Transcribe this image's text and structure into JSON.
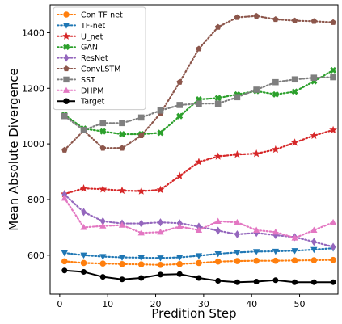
{
  "chart_data": {
    "type": "line",
    "xlabel": "Predition Step",
    "ylabel": "Mean Absolute Divergence",
    "xlim": [
      -2,
      58
    ],
    "ylim": [
      460,
      1500
    ],
    "xticks": [
      0,
      10,
      20,
      30,
      40,
      50
    ],
    "yticks": [
      600,
      800,
      1000,
      1200,
      1400
    ],
    "grid": false,
    "legend_position": "top-left",
    "x": [
      1,
      5,
      9,
      13,
      17,
      21,
      25,
      29,
      33,
      37,
      41,
      45,
      49,
      53,
      57
    ],
    "series": [
      {
        "name": "Con TF-net",
        "color": "#ff7f0e",
        "marker": "circle",
        "style": "dotted",
        "values": [
          578,
          572,
          570,
          568,
          567,
          565,
          568,
          572,
          577,
          579,
          580,
          580,
          581,
          582,
          583
        ]
      },
      {
        "name": "TF-net",
        "color": "#1f77b4",
        "marker": "triangle-down",
        "style": "dotted",
        "values": [
          608,
          600,
          595,
          592,
          591,
          590,
          592,
          598,
          605,
          610,
          613,
          614,
          616,
          620,
          625
        ]
      },
      {
        "name": "U_net",
        "color": "#d62728",
        "marker": "star",
        "style": "dotted",
        "values": [
          820,
          840,
          837,
          832,
          830,
          835,
          885,
          935,
          955,
          962,
          965,
          980,
          1005,
          1030,
          1050
        ]
      },
      {
        "name": "GAN",
        "color": "#2ca02c",
        "marker": "x",
        "style": "dotted",
        "values": [
          1105,
          1055,
          1045,
          1035,
          1035,
          1040,
          1100,
          1160,
          1165,
          1178,
          1190,
          1178,
          1188,
          1225,
          1265
        ]
      },
      {
        "name": "ResNet",
        "color": "#9467bd",
        "marker": "diamond",
        "style": "dotted",
        "values": [
          818,
          755,
          722,
          714,
          714,
          718,
          715,
          703,
          688,
          675,
          680,
          672,
          665,
          648,
          630
        ]
      },
      {
        "name": "ConvLSTM",
        "color": "#8c564b",
        "marker": "pentagon",
        "style": "dotted",
        "values": [
          978,
          1048,
          985,
          985,
          1030,
          1110,
          1222,
          1342,
          1420,
          1455,
          1460,
          1448,
          1443,
          1441,
          1437
        ]
      },
      {
        "name": "SST",
        "color": "#7f7f7f",
        "marker": "square",
        "style": "dotted",
        "values": [
          1100,
          1050,
          1075,
          1075,
          1095,
          1120,
          1140,
          1145,
          1145,
          1168,
          1195,
          1222,
          1232,
          1238,
          1240
        ]
      },
      {
        "name": "DHPM",
        "color": "#e377c2",
        "marker": "triangle-up",
        "style": "dotted",
        "values": [
          805,
          700,
          705,
          708,
          680,
          683,
          703,
          690,
          722,
          718,
          690,
          683,
          662,
          690,
          718
        ]
      },
      {
        "name": "Target",
        "color": "#000000",
        "marker": "circle",
        "style": "solid",
        "values": [
          545,
          540,
          522,
          513,
          518,
          530,
          532,
          518,
          508,
          503,
          505,
          510,
          503,
          503,
          503
        ]
      }
    ]
  }
}
